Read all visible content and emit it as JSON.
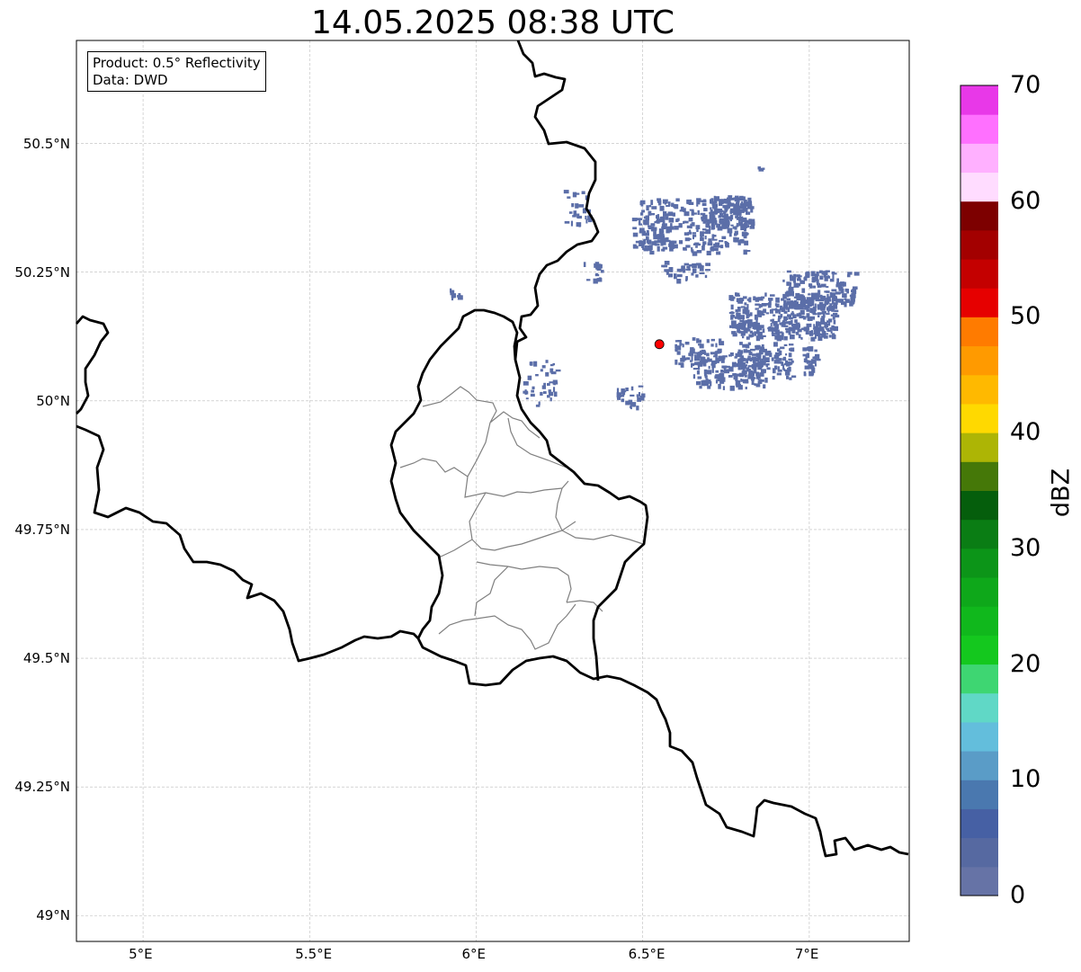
{
  "title": "14.05.2025 08:38 UTC",
  "info_box": {
    "product": "Product: 0.5° Reflectivity",
    "source": "Data: DWD"
  },
  "map": {
    "lon_range": [
      4.8,
      7.3
    ],
    "lat_range": [
      48.95,
      50.7
    ],
    "gridlines": true,
    "lon_ticks": [
      {
        "value": 5.0,
        "label": "5°E"
      },
      {
        "value": 5.5,
        "label": "5.5°E"
      },
      {
        "value": 6.0,
        "label": "6°E"
      },
      {
        "value": 6.5,
        "label": "6.5°E"
      },
      {
        "value": 7.0,
        "label": "7°E"
      }
    ],
    "lat_ticks": [
      {
        "value": 50.5,
        "label": "50.5°N"
      },
      {
        "value": 50.25,
        "label": "50.25°N"
      },
      {
        "value": 50.0,
        "label": "50°N"
      },
      {
        "value": 49.75,
        "label": "49.75°N"
      },
      {
        "value": 49.5,
        "label": "49.5°N"
      },
      {
        "value": 49.25,
        "label": "49.25°N"
      },
      {
        "value": 49.0,
        "label": "49°N"
      }
    ],
    "radar_site": {
      "lon": 6.55,
      "lat": 50.11,
      "color": "#ff0000"
    },
    "echo_color": "#5b6ea8"
  },
  "colorbar": {
    "unit": "dBZ",
    "min": 0,
    "max": 70,
    "tick_labels": [
      "0",
      "10",
      "20",
      "30",
      "40",
      "50",
      "60",
      "70"
    ],
    "tick_values": [
      0,
      10,
      20,
      30,
      40,
      50,
      60,
      70
    ],
    "colors": [
      "#6673a6",
      "#5669a1",
      "#4660a4",
      "#4a78af",
      "#5a9cc7",
      "#63bedc",
      "#60d8c6",
      "#3ed672",
      "#14c81e",
      "#10b81c",
      "#0ea81a",
      "#0c9518",
      "#0a7d14",
      "#055e0c",
      "#457808",
      "#adb505",
      "#ffd900",
      "#ffb900",
      "#ff9a00",
      "#ff7b00",
      "#e60000",
      "#c40000",
      "#a30000",
      "#7d0000",
      "#ffdcff",
      "#ffb0ff",
      "#ff70ff",
      "#e838e8"
    ]
  }
}
